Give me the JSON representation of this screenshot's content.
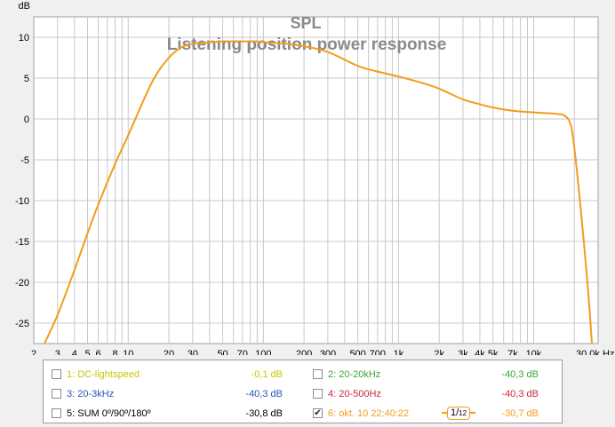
{
  "chart_data": {
    "type": "line",
    "title": "SPL",
    "subtitle": "Listening position power response",
    "ylabel": "dB",
    "xunit": "Hz",
    "xscale": "log",
    "xlim": [
      2,
      30000
    ],
    "ylim": [
      -27.5,
      12.5
    ],
    "grid": true,
    "x_tick_labels": [
      {
        "v": 2,
        "t": "2"
      },
      {
        "v": 3,
        "t": "3"
      },
      {
        "v": 4,
        "t": "4"
      },
      {
        "v": 5,
        "t": "5"
      },
      {
        "v": 6,
        "t": "6"
      },
      {
        "v": 8,
        "t": "8"
      },
      {
        "v": 10,
        "t": "10"
      },
      {
        "v": 20,
        "t": "20"
      },
      {
        "v": 30,
        "t": "30"
      },
      {
        "v": 50,
        "t": "50"
      },
      {
        "v": 70,
        "t": "70"
      },
      {
        "v": 100,
        "t": "100"
      },
      {
        "v": 200,
        "t": "200"
      },
      {
        "v": 300,
        "t": "300"
      },
      {
        "v": 500,
        "t": "500"
      },
      {
        "v": 700,
        "t": "700"
      },
      {
        "v": 1000,
        "t": "1k"
      },
      {
        "v": 2000,
        "t": "2k"
      },
      {
        "v": 3000,
        "t": "3k"
      },
      {
        "v": 4000,
        "t": "4k"
      },
      {
        "v": 5000,
        "t": "5k"
      },
      {
        "v": 7000,
        "t": "7k"
      },
      {
        "v": 10000,
        "t": "10k"
      },
      {
        "v": 30000,
        "t": "30,0k Hz"
      }
    ],
    "y_ticks": [
      10,
      5,
      0,
      -5,
      -10,
      -15,
      -20,
      -25
    ],
    "y_tick_labels": [
      "10",
      "5",
      "0",
      "-5",
      "-10",
      "-15",
      "-20",
      "-25"
    ],
    "series": [
      {
        "name": "6: okt. 10 22:40:22",
        "color": "#f39c1b",
        "x": [
          2.4,
          3,
          4,
          5,
          6,
          8,
          10,
          15,
          20,
          25,
          30,
          40,
          50,
          60,
          70,
          80,
          90,
          100,
          150,
          200,
          300,
          500,
          700,
          1000,
          1500,
          2000,
          3000,
          4000,
          5000,
          7000,
          10000,
          13000,
          15000,
          16500,
          18000,
          19000,
          20000,
          22000,
          25000,
          27000
        ],
        "y": [
          -27.5,
          -24,
          -18.5,
          -14,
          -10.5,
          -5.5,
          -2,
          4.5,
          7.5,
          8.8,
          9.2,
          9.4,
          9.5,
          9.5,
          9.5,
          9.5,
          9.5,
          9.4,
          9.2,
          8.9,
          8.2,
          6.5,
          5.8,
          5.2,
          4.4,
          3.7,
          2.4,
          1.8,
          1.4,
          1.0,
          0.8,
          0.7,
          0.6,
          0.5,
          0.0,
          -1.0,
          -3.5,
          -10,
          -20,
          -27.5
        ]
      }
    ]
  },
  "legend": [
    {
      "label": "1: DC-lightspeed",
      "value": "-0,1 dB",
      "checked": false,
      "color": "#c8c800"
    },
    {
      "label": "2: 20-20kHz",
      "value": "-40,3 dB",
      "checked": false,
      "color": "#3aa83a"
    },
    {
      "label": "3: 20-3kHz",
      "value": "-40,3 dB",
      "checked": false,
      "color": "#2a55b0"
    },
    {
      "label": "4: 20-500Hz",
      "value": "-40,3 dB",
      "checked": false,
      "color": "#c8283c"
    },
    {
      "label": "5: SUM 0º/90º/180º",
      "value": "-30,8 dB",
      "checked": false,
      "color": "#000000"
    },
    {
      "label": "6: okt. 10 22:40:22",
      "value": "-30,7 dB",
      "checked": true,
      "color": "#f39c1b"
    }
  ],
  "smoothing": {
    "num": "1",
    "den": "12"
  }
}
